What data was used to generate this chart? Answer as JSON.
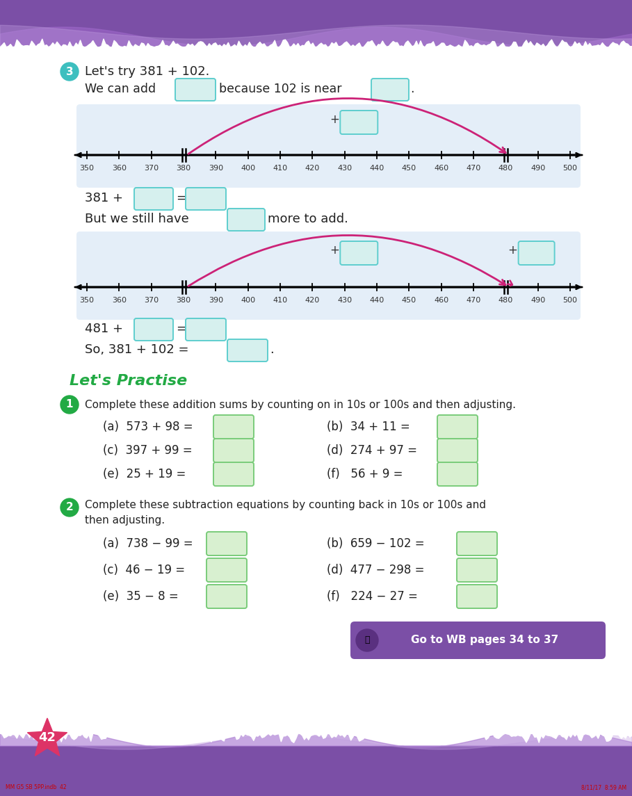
{
  "bg_color": "#ffffff",
  "header_color": "#7b4fa6",
  "footer_color": "#7b4fa6",
  "page_number": "42",
  "footer_left_text": "MM G5 SB 5PP.indb  42",
  "footer_right_text": "8/11/17  8:59 AM",
  "teal_circle_color": "#3dbfbf",
  "teal_box_fill": "#d6f0ee",
  "teal_box_border": "#5ecece",
  "green_box_fill": "#d8f0d0",
  "green_box_border": "#7acc7a",
  "number_line_bg": "#e4eef8",
  "arrow_color": "#cc2277",
  "green_title": "Let's Practise",
  "green_color": "#22aa44",
  "q1_text": "Complete these addition sums by counting on in 10s or 100s and then adjusting.",
  "q1_left": [
    "(a)  573 + 98 =",
    "(c)  397 + 99 =",
    "(e)  25 + 19 ="
  ],
  "q1_right": [
    "(b)  34 + 11 =",
    "(d)  274 + 97 =",
    "(f)   56 + 9 ="
  ],
  "q2_line1": "Complete these subtraction equations by counting back in 10s or 100s and",
  "q2_line2": "then adjusting.",
  "q2_left": [
    "(a)  738 − 99 =",
    "(c)  46 − 19 =",
    "(e)  35 − 8 ="
  ],
  "q2_right": [
    "(b)  659 − 102 =",
    "(d)  477 − 298 =",
    "(f)   224 − 27 ="
  ],
  "goto_text": "Go to WB pages 34 to 37",
  "goto_bg": "#7b4fa6",
  "nl_ticks": [
    350,
    360,
    370,
    380,
    390,
    400,
    410,
    420,
    430,
    440,
    450,
    460,
    470,
    480,
    490,
    500
  ],
  "nl_double": [
    380,
    480
  ]
}
